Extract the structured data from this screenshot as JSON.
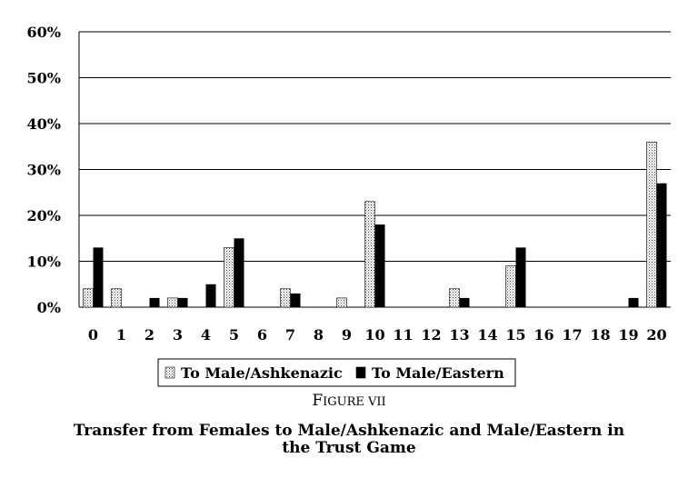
{
  "chart_data": {
    "type": "bar",
    "categories": [
      "0",
      "1",
      "2",
      "3",
      "4",
      "5",
      "6",
      "7",
      "8",
      "9",
      "10",
      "11",
      "12",
      "13",
      "14",
      "15",
      "16",
      "17",
      "18",
      "19",
      "20"
    ],
    "series": [
      {
        "name": "To Male/Ashkenazic",
        "pattern": "dotted",
        "color": "#f2f2f2",
        "values": [
          4,
          4,
          0,
          2,
          0,
          13,
          0,
          4,
          0,
          2,
          23,
          0,
          0,
          4,
          0,
          9,
          0,
          0,
          0,
          0,
          36
        ]
      },
      {
        "name": "To Male/Eastern",
        "pattern": "solid",
        "color": "#000000",
        "values": [
          13,
          0,
          2,
          2,
          5,
          15,
          0,
          3,
          0,
          0,
          18,
          0,
          0,
          2,
          0,
          13,
          0,
          0,
          0,
          2,
          27
        ]
      }
    ],
    "yticks": [
      "0%",
      "10%",
      "20%",
      "30%",
      "40%",
      "50%",
      "60%"
    ],
    "ylim": [
      0,
      60
    ],
    "grid": true,
    "legend_position": "bottom"
  },
  "caption": {
    "label": "FIGURE VII",
    "text_line1": "Transfer from Females to Male/Ashkenazic and Male/Eastern in",
    "text_line2": "the Trust Game"
  }
}
